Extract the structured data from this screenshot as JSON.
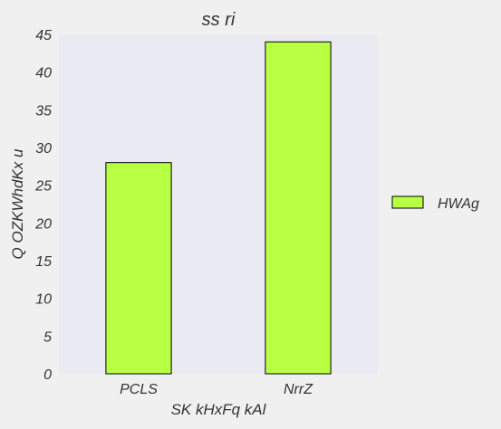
{
  "chart_data": {
    "type": "bar",
    "title": "ss ri",
    "xlabel": "SK kHxFq  kAl",
    "ylabel": "Q OZKWhdKx u",
    "categories": [
      "PCLS",
      "NrrZ"
    ],
    "series": [
      {
        "name": "HWAg",
        "values": [
          28,
          44
        ]
      }
    ],
    "ylim": [
      0,
      45
    ],
    "yticks": [
      0,
      5,
      10,
      15,
      20,
      25,
      30,
      35,
      40,
      45
    ],
    "grid": false,
    "legend": "right",
    "colors": {
      "bar": "#b9ff42",
      "bar_edge": "#000000",
      "plot_bg": "#eaeaf2",
      "page_bg": "#f0f0f0",
      "text": "#333333"
    }
  }
}
